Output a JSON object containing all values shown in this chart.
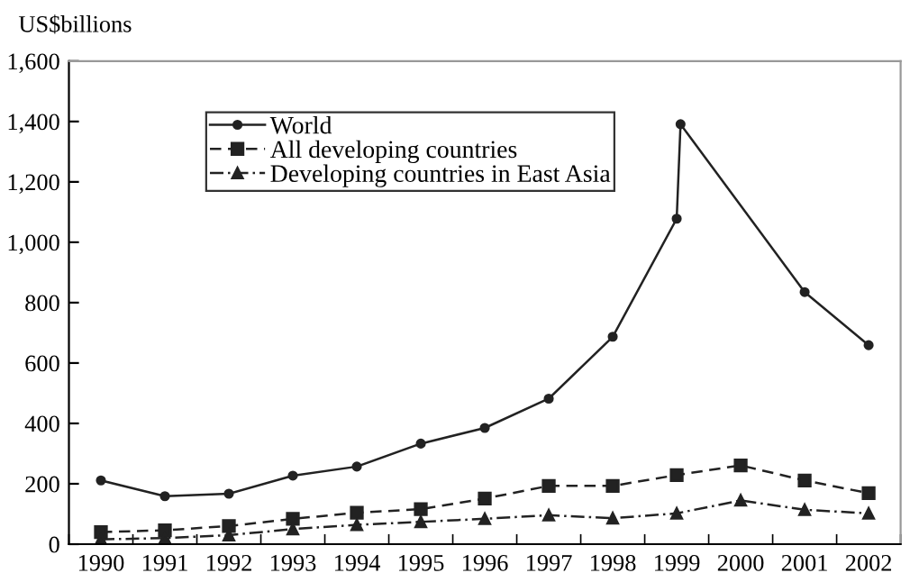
{
  "chart_data": {
    "type": "line",
    "ylabel": "US$billions",
    "xlim": [
      1989.5,
      2002.5
    ],
    "ylim": [
      0,
      1600
    ],
    "xticks": [
      {
        "value": 1989.5,
        "label": null
      },
      {
        "value": 1990,
        "label": "1990"
      },
      {
        "value": 1990.5,
        "label": null
      },
      {
        "value": 1991,
        "label": "1991"
      },
      {
        "value": 1991.5,
        "label": null
      },
      {
        "value": 1992,
        "label": "1992"
      },
      {
        "value": 1992.5,
        "label": null
      },
      {
        "value": 1993,
        "label": "1993"
      },
      {
        "value": 1993.5,
        "label": null
      },
      {
        "value": 1994,
        "label": "1994"
      },
      {
        "value": 1994.5,
        "label": null
      },
      {
        "value": 1995,
        "label": "1995"
      },
      {
        "value": 1995.5,
        "label": null
      },
      {
        "value": 1996,
        "label": "1996"
      },
      {
        "value": 1996.5,
        "label": null
      },
      {
        "value": 1997,
        "label": "1997"
      },
      {
        "value": 1997.5,
        "label": null
      },
      {
        "value": 1998,
        "label": "1998"
      },
      {
        "value": 1998.5,
        "label": null
      },
      {
        "value": 1999,
        "label": "1999"
      },
      {
        "value": 1999.5,
        "label": null
      },
      {
        "value": 2000,
        "label": "2000"
      },
      {
        "value": 2000.5,
        "label": null
      },
      {
        "value": 2001,
        "label": "2001"
      },
      {
        "value": 2001.5,
        "label": null
      },
      {
        "value": 2002,
        "label": "2002"
      },
      {
        "value": 2002.5,
        "label": null
      }
    ],
    "yticks": [
      0,
      200,
      400,
      600,
      800,
      {
        "value": 1000,
        "label": "1,000"
      },
      {
        "value": 1200,
        "label": "1,200"
      },
      {
        "value": 1400,
        "label": "1,400"
      },
      {
        "value": 1600,
        "label": "1,600"
      }
    ],
    "grid": false,
    "legend": "top",
    "x": [
      1990,
      1991,
      1992,
      1993,
      1994,
      1995,
      1996,
      1997,
      1998,
      1999,
      2000,
      2001,
      2002
    ],
    "series": [
      {
        "name": "World",
        "color": "#222222",
        "marker": "circle",
        "line_style": "solid",
        "x": [
          1990,
          1991,
          1992,
          1993,
          1994,
          1995,
          1996,
          1997,
          1998,
          1999,
          1999.06,
          2001,
          2002
        ],
        "values": [
          211,
          159,
          167,
          227,
          257,
          333,
          385,
          482,
          687,
          1078,
          1391,
          835,
          659
        ]
      },
      {
        "name": "All developing countries",
        "color": "#222222",
        "marker": "square",
        "line_style": "dashed",
        "values": [
          40,
          46,
          60,
          84,
          104,
          116,
          151,
          193,
          193,
          229,
          261,
          211,
          169
        ]
      },
      {
        "name": "Developing countries in East Asia",
        "color": "#222222",
        "marker": "triangle",
        "line_style": "dashdot",
        "values": [
          16,
          20,
          30,
          50,
          64,
          74,
          84,
          96,
          86,
          102,
          145,
          114,
          102
        ]
      }
    ]
  }
}
